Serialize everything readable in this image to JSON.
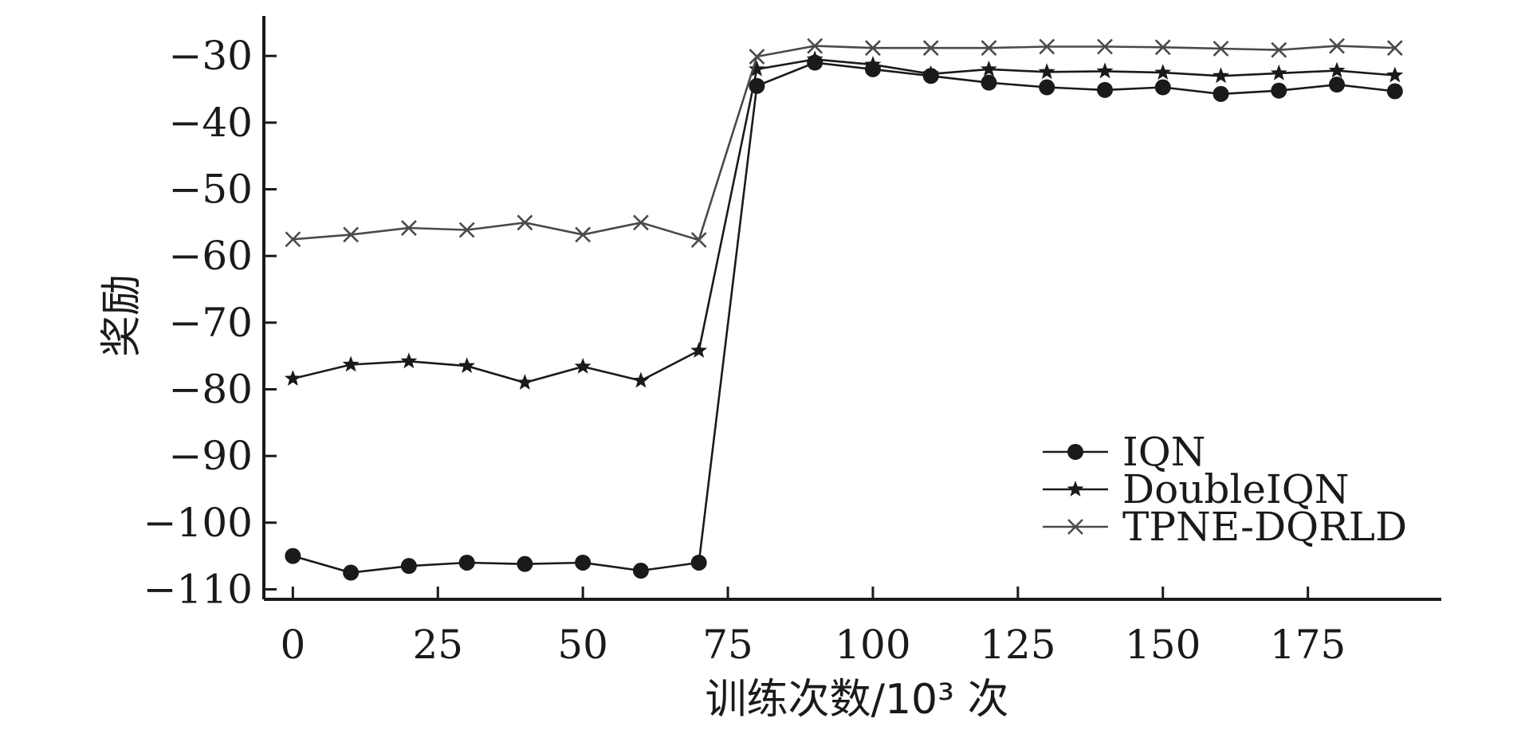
{
  "chart_data": {
    "type": "line",
    "xlabel": "训练次数/10³ 次",
    "ylabel": "奖励",
    "xlim": [
      -5,
      198
    ],
    "ylim": [
      -111.5,
      -24
    ],
    "xticks": [
      0,
      25,
      50,
      75,
      100,
      125,
      150,
      175
    ],
    "xtick_labels": [
      "0",
      "25",
      "50",
      "75",
      "100",
      "125",
      "150",
      "175"
    ],
    "yticks": [
      -30,
      -40,
      -50,
      -60,
      -70,
      -80,
      -90,
      -100,
      -110
    ],
    "ytick_labels": [
      "−30",
      "−40",
      "−50",
      "−60",
      "−70",
      "−80",
      "−90",
      "−100",
      "−110"
    ],
    "grid": false,
    "legend_position": "lower-right",
    "x": [
      0,
      10,
      20,
      30,
      40,
      50,
      60,
      70,
      80,
      90,
      100,
      110,
      120,
      130,
      140,
      150,
      160,
      170,
      180,
      190
    ],
    "series": [
      {
        "name": "IQN",
        "marker": "circle",
        "color": "#1a1a1a",
        "values": [
          -105,
          -107.5,
          -106.5,
          -106,
          -106.2,
          -106,
          -107.2,
          -106,
          -34.5,
          -31,
          -32,
          -33,
          -34,
          -34.7,
          -35.1,
          -34.7,
          -35.7,
          -35.2,
          -34.3,
          -35.3
        ]
      },
      {
        "name": "DoubleIQN",
        "marker": "star",
        "color": "#1a1a1a",
        "values": [
          -78.4,
          -76.3,
          -75.8,
          -76.5,
          -79,
          -76.6,
          -78.7,
          -74.2,
          -32,
          -30.5,
          -31.3,
          -32.7,
          -32,
          -32.4,
          -32.3,
          -32.5,
          -33,
          -32.6,
          -32.2,
          -32.9
        ]
      },
      {
        "name": "TPNE-DQRLD",
        "marker": "x",
        "color": "#4a4a4a",
        "values": [
          -57.5,
          -56.8,
          -55.8,
          -56.1,
          -55,
          -56.8,
          -55,
          -57.6,
          -30.1,
          -28.5,
          -28.8,
          -28.8,
          -28.8,
          -28.6,
          -28.6,
          -28.7,
          -28.9,
          -29.1,
          -28.5,
          -28.8
        ]
      }
    ]
  }
}
